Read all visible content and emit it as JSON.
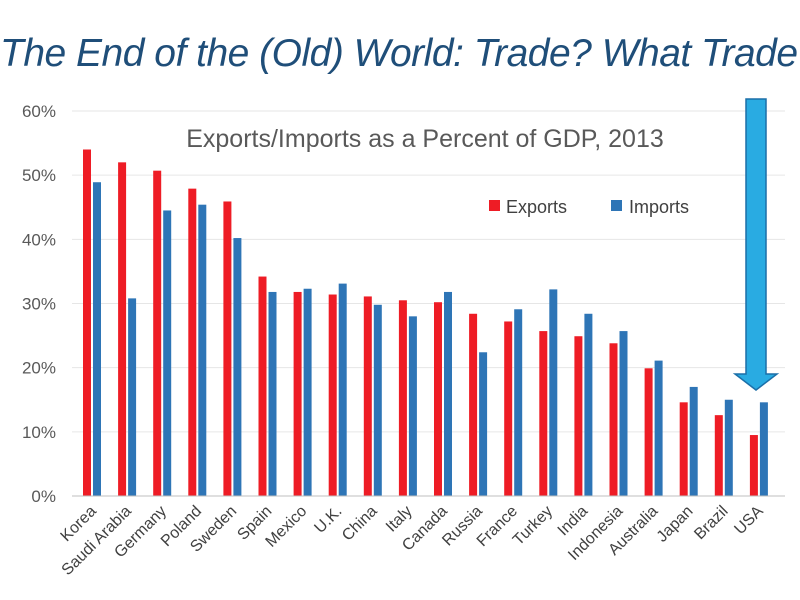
{
  "headline": "The End of the (Old) World: Trade? What Trade?",
  "colors": {
    "exports": "#ee1c25",
    "imports": "#2e75b6",
    "arrow": "#29abe2",
    "arrow_stroke": "#1b6fa8",
    "headline": "#1f4e79"
  },
  "chart_data": {
    "type": "bar",
    "title": "Exports/Imports as a Percent of GDP, 2013",
    "xlabel": "",
    "ylabel": "",
    "ylim": [
      0,
      60
    ],
    "yticks": [
      "0%",
      "10%",
      "20%",
      "30%",
      "40%",
      "50%",
      "60%"
    ],
    "grid": true,
    "legend_position": "top-right",
    "categories": [
      "Korea",
      "Saudi Arabia",
      "Germany",
      "Poland",
      "Sweden",
      "Spain",
      "Mexico",
      "U.K.",
      "China",
      "Italy",
      "Canada",
      "Russia",
      "France",
      "Turkey",
      "India",
      "Indonesia",
      "Australia",
      "Japan",
      "Brazil",
      "USA"
    ],
    "series": [
      {
        "name": "Exports",
        "values": [
          54.0,
          52.0,
          50.7,
          47.9,
          45.9,
          34.2,
          31.8,
          31.4,
          31.1,
          30.5,
          30.2,
          28.4,
          27.2,
          25.7,
          24.9,
          23.8,
          19.9,
          14.6,
          12.6,
          9.5
        ]
      },
      {
        "name": "Imports",
        "values": [
          48.9,
          30.8,
          44.5,
          45.4,
          40.2,
          31.8,
          32.3,
          33.1,
          29.8,
          28.0,
          31.8,
          22.4,
          29.1,
          32.2,
          28.4,
          25.7,
          21.1,
          17.0,
          15.0,
          14.6
        ]
      }
    ]
  }
}
